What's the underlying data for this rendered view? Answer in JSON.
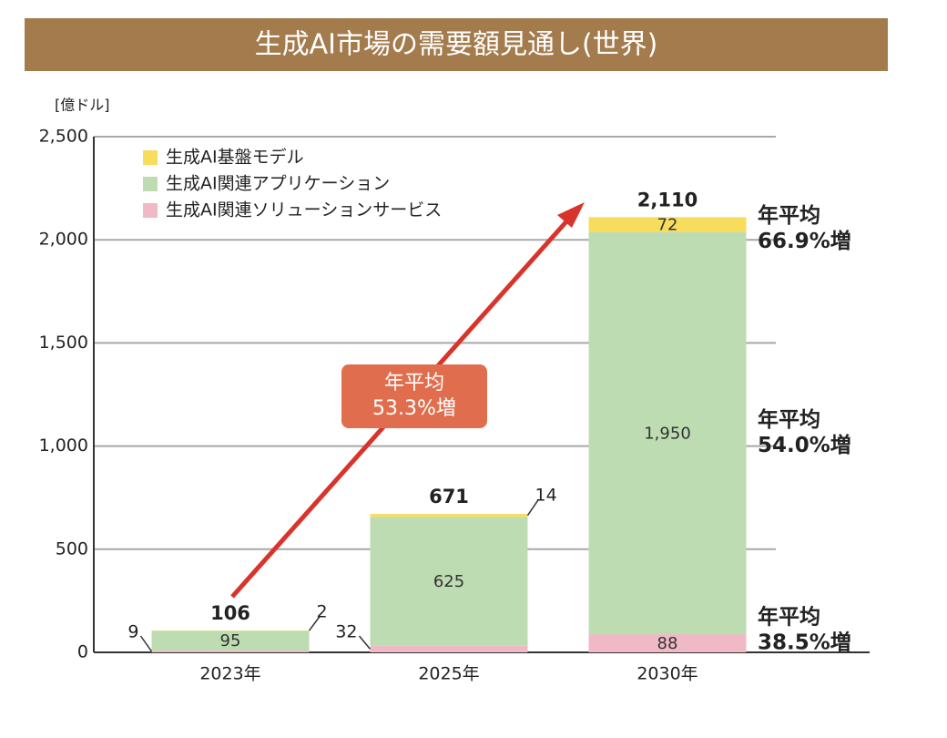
{
  "chart_data": {
    "type": "stacked_bar",
    "title": "生成AI市場の需要額見通し(世界)",
    "y_unit_label": "[億ドル]",
    "categories": [
      "2023年",
      "2025年",
      "2030年"
    ],
    "series": [
      {
        "name": "生成AI基盤モデル",
        "color": "#f8dc5e",
        "values": [
          2,
          14,
          72
        ],
        "annotation": [
          "年平均",
          "66.9%増"
        ]
      },
      {
        "name": "生成AI関連アプリケーション",
        "color": "#bedcb1",
        "values": [
          95,
          625,
          1950
        ],
        "value_labels": [
          "95",
          "625",
          "1,950"
        ],
        "annotation": [
          "年平均",
          "54.0%増"
        ]
      },
      {
        "name": "生成AI関連ソリューションサービス",
        "color": "#efb9c5",
        "values": [
          9,
          32,
          88
        ],
        "annotation": [
          "年平均",
          "38.5%増"
        ]
      }
    ],
    "totals": [
      106,
      671,
      2110
    ],
    "total_labels": [
      "106",
      "671",
      "2,110"
    ],
    "overall_annotation": [
      "年平均",
      "53.3%増"
    ],
    "ylim": [
      0,
      2500
    ],
    "yticks": [
      0,
      500,
      {
        "value": 1000,
        "label": "1,000"
      },
      {
        "value": 1500,
        "label": "1,500"
      },
      {
        "value": 2000,
        "label": "2,000"
      },
      {
        "value": 2500,
        "label": "2,500"
      }
    ],
    "grid": true
  }
}
